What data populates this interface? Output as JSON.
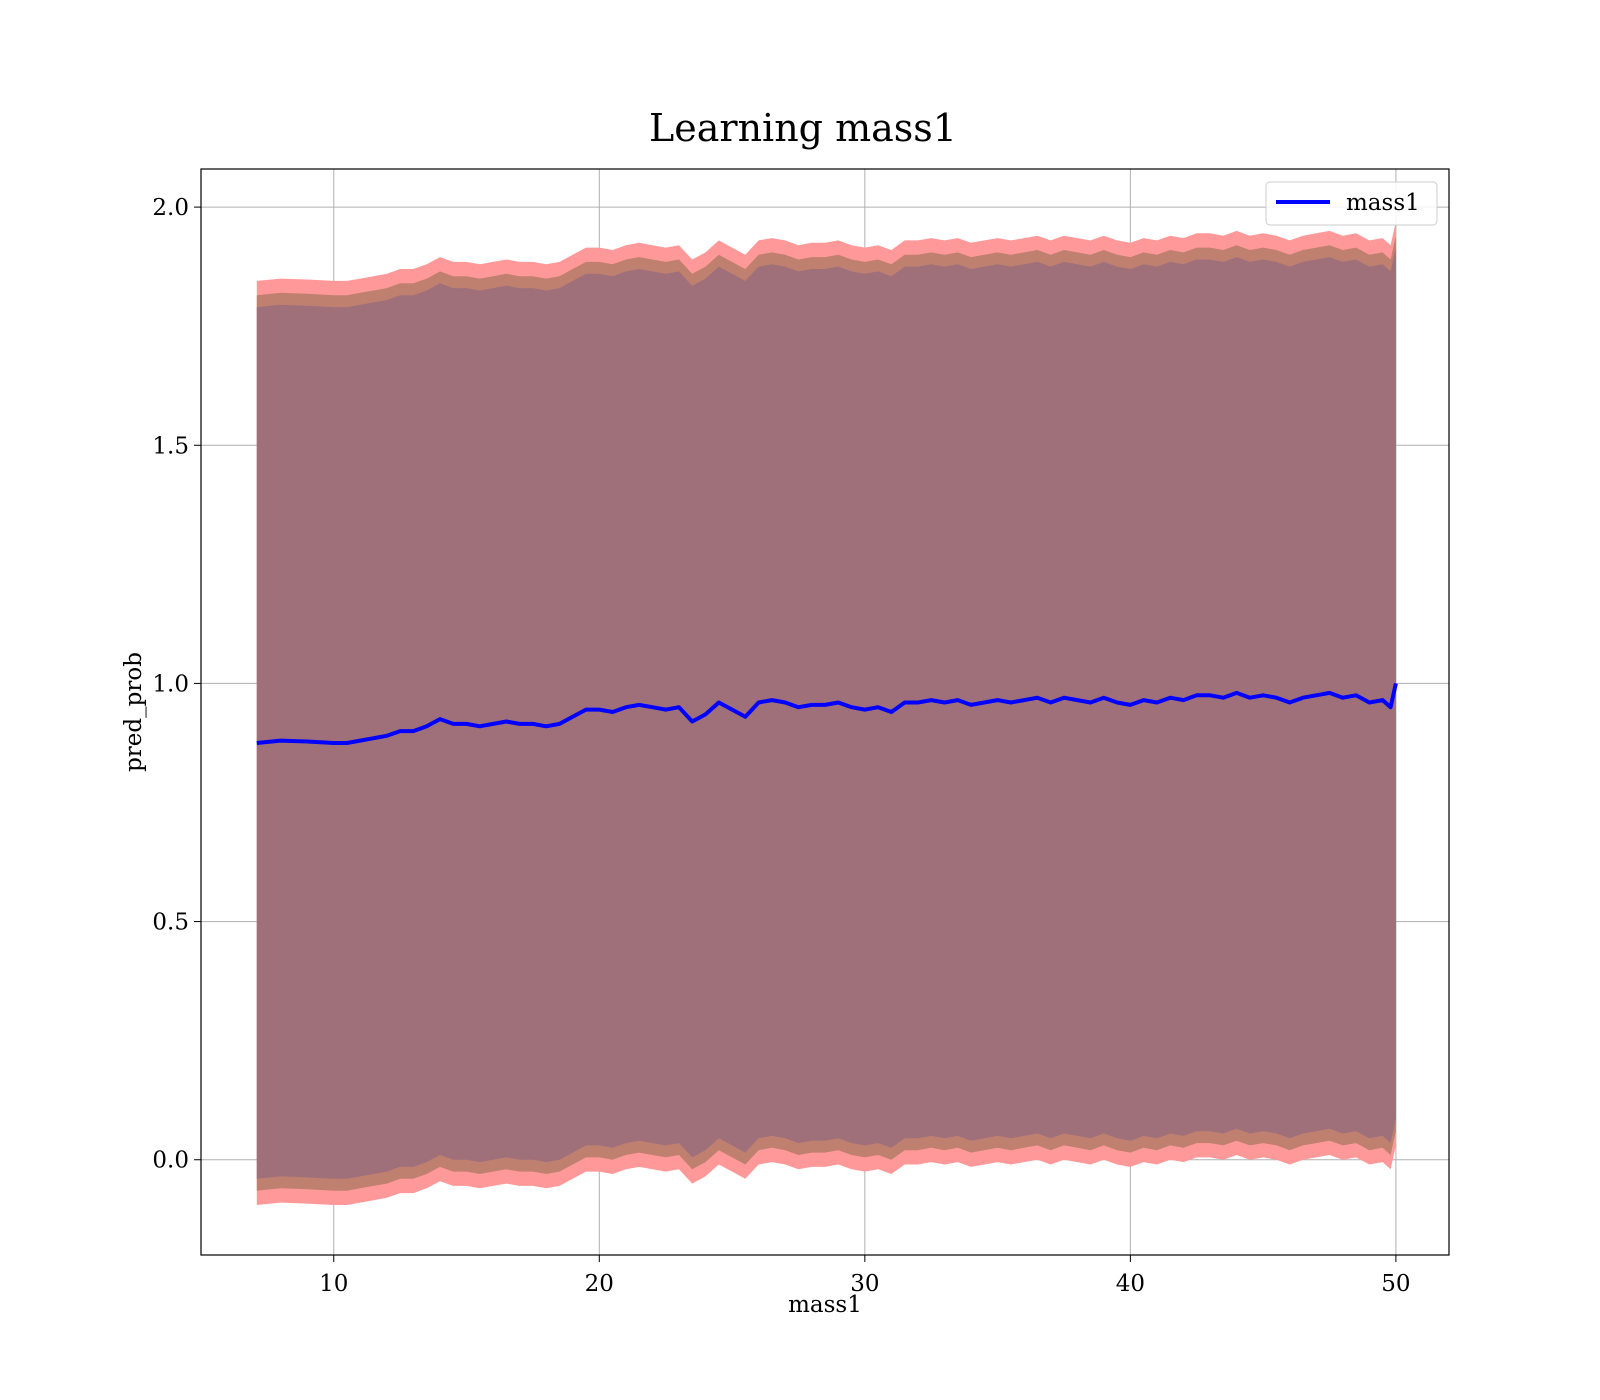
{
  "chart_data": {
    "type": "line",
    "title": "Learning mass1",
    "xlabel": "mass1",
    "ylabel": "pred_prob",
    "xlim": [
      5,
      52
    ],
    "ylim": [
      -0.2,
      2.08
    ],
    "xticks": [
      10,
      20,
      30,
      40,
      50
    ],
    "yticks": [
      0.0,
      0.5,
      1.0,
      1.5,
      2.0
    ],
    "xtick_labels": [
      "10",
      "20",
      "30",
      "40",
      "50"
    ],
    "ytick_labels": [
      "0.0",
      "0.5",
      "1.0",
      "1.5",
      "2.0"
    ],
    "grid": true,
    "legend": {
      "placement": "top-right",
      "entries": [
        "mass1"
      ]
    },
    "colors": {
      "line": "#0000ff",
      "band_outer": "#ff9999",
      "band_middle": "#c08070",
      "band_inner": "#a0707a"
    },
    "series": [
      {
        "name": "mass1",
        "x": [
          7.1,
          8,
          9,
          10,
          10.5,
          11,
          11.5,
          12,
          12.5,
          13,
          13.5,
          14,
          14.5,
          15,
          15.5,
          16,
          16.5,
          17,
          17.5,
          18,
          18.5,
          19,
          19.5,
          20,
          20.5,
          21,
          21.5,
          22,
          22.5,
          23,
          23.5,
          24,
          24.5,
          25,
          25.5,
          26,
          26.5,
          27,
          27.5,
          28,
          28.5,
          29,
          29.5,
          30,
          30.5,
          31,
          31.5,
          32,
          32.5,
          33,
          33.5,
          34,
          34.5,
          35,
          35.5,
          36,
          36.5,
          37,
          37.5,
          38,
          38.5,
          39,
          39.5,
          40,
          40.5,
          41,
          41.5,
          42,
          42.5,
          43,
          43.5,
          44,
          44.5,
          45,
          45.5,
          46,
          46.5,
          47,
          47.5,
          48,
          48.5,
          49,
          49.5,
          49.8,
          50
        ],
        "y": [
          0.875,
          0.88,
          0.878,
          0.875,
          0.875,
          0.88,
          0.885,
          0.89,
          0.9,
          0.9,
          0.91,
          0.925,
          0.915,
          0.915,
          0.91,
          0.915,
          0.92,
          0.915,
          0.915,
          0.91,
          0.915,
          0.93,
          0.945,
          0.945,
          0.94,
          0.95,
          0.955,
          0.95,
          0.945,
          0.95,
          0.92,
          0.935,
          0.96,
          0.945,
          0.93,
          0.96,
          0.965,
          0.96,
          0.95,
          0.955,
          0.955,
          0.96,
          0.95,
          0.945,
          0.95,
          0.94,
          0.96,
          0.96,
          0.965,
          0.96,
          0.965,
          0.955,
          0.96,
          0.965,
          0.96,
          0.965,
          0.97,
          0.96,
          0.97,
          0.965,
          0.96,
          0.97,
          0.96,
          0.955,
          0.965,
          0.96,
          0.97,
          0.965,
          0.975,
          0.975,
          0.97,
          0.98,
          0.97,
          0.975,
          0.97,
          0.96,
          0.97,
          0.975,
          0.98,
          0.97,
          0.975,
          0.96,
          0.965,
          0.95,
          1.0
        ]
      }
    ]
  }
}
